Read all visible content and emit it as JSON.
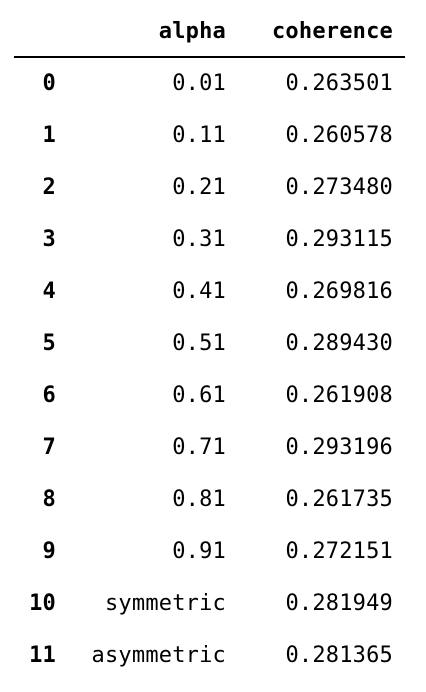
{
  "table": {
    "columns": [
      "",
      "alpha",
      "coherence"
    ],
    "rows": [
      {
        "index": "0",
        "alpha": "0.01",
        "coherence": "0.263501"
      },
      {
        "index": "1",
        "alpha": "0.11",
        "coherence": "0.260578"
      },
      {
        "index": "2",
        "alpha": "0.21",
        "coherence": "0.273480"
      },
      {
        "index": "3",
        "alpha": "0.31",
        "coherence": "0.293115"
      },
      {
        "index": "4",
        "alpha": "0.41",
        "coherence": "0.269816"
      },
      {
        "index": "5",
        "alpha": "0.51",
        "coherence": "0.289430"
      },
      {
        "index": "6",
        "alpha": "0.61",
        "coherence": "0.261908"
      },
      {
        "index": "7",
        "alpha": "0.71",
        "coherence": "0.293196"
      },
      {
        "index": "8",
        "alpha": "0.81",
        "coherence": "0.261735"
      },
      {
        "index": "9",
        "alpha": "0.91",
        "coherence": "0.272151"
      },
      {
        "index": "10",
        "alpha": "symmetric",
        "coherence": "0.281949"
      },
      {
        "index": "11",
        "alpha": "asymmetric",
        "coherence": "0.281365"
      }
    ]
  }
}
